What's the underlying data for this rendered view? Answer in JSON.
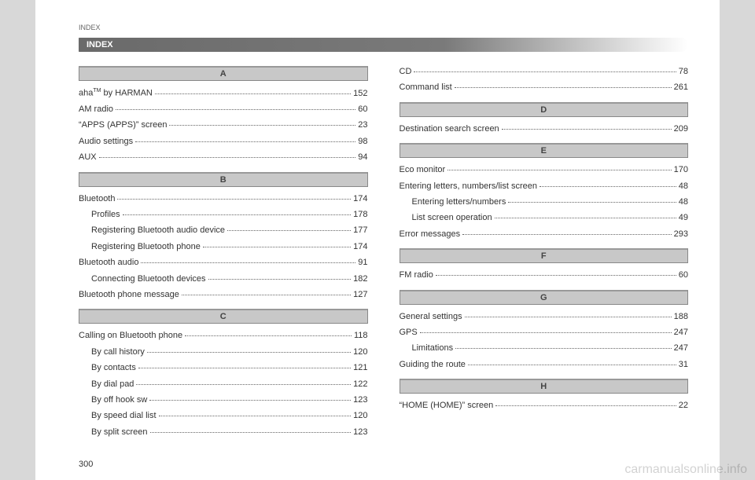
{
  "header": "INDEX",
  "title": "INDEX",
  "pageNumber": "300",
  "watermark": "carmanualsonline.info",
  "left": {
    "sections": [
      {
        "letter": "A",
        "entries": [
          {
            "label": "aha™ by HARMAN",
            "page": "152",
            "indent": false,
            "sup": "TM",
            "prefix": "aha",
            "suffix": " by HARMAN"
          },
          {
            "label": "AM radio",
            "page": "60",
            "indent": false
          },
          {
            "label": "“APPS (APPS)” screen",
            "page": "23",
            "indent": false
          },
          {
            "label": "Audio settings",
            "page": "98",
            "indent": false
          },
          {
            "label": "AUX",
            "page": "94",
            "indent": false
          }
        ]
      },
      {
        "letter": "B",
        "entries": [
          {
            "label": "Bluetooth",
            "page": "174",
            "indent": false
          },
          {
            "label": "Profiles",
            "page": "178",
            "indent": true
          },
          {
            "label": "Registering Bluetooth audio device",
            "page": "177",
            "indent": true
          },
          {
            "label": "Registering Bluetooth phone",
            "page": "174",
            "indent": true
          },
          {
            "label": "Bluetooth audio",
            "page": "91",
            "indent": false
          },
          {
            "label": "Connecting Bluetooth devices",
            "page": "182",
            "indent": true
          },
          {
            "label": "Bluetooth phone message",
            "page": "127",
            "indent": false
          }
        ]
      },
      {
        "letter": "C",
        "entries": [
          {
            "label": "Calling on Bluetooth phone",
            "page": "118",
            "indent": false
          },
          {
            "label": "By call history",
            "page": "120",
            "indent": true
          },
          {
            "label": "By contacts",
            "page": "121",
            "indent": true
          },
          {
            "label": "By dial pad",
            "page": "122",
            "indent": true
          },
          {
            "label": "By off hook sw",
            "page": "123",
            "indent": true
          },
          {
            "label": "By speed dial list",
            "page": "120",
            "indent": true
          },
          {
            "label": "By split screen",
            "page": "123",
            "indent": true
          }
        ]
      }
    ]
  },
  "right": {
    "preEntries": [
      {
        "label": "CD",
        "page": "78",
        "indent": false
      },
      {
        "label": "Command list",
        "page": "261",
        "indent": false
      }
    ],
    "sections": [
      {
        "letter": "D",
        "entries": [
          {
            "label": "Destination search screen",
            "page": "209",
            "indent": false
          }
        ]
      },
      {
        "letter": "E",
        "entries": [
          {
            "label": "Eco monitor",
            "page": "170",
            "indent": false
          },
          {
            "label": "Entering letters, numbers/list screen",
            "page": "48",
            "indent": false
          },
          {
            "label": "Entering letters/numbers",
            "page": "48",
            "indent": true
          },
          {
            "label": "List screen operation",
            "page": "49",
            "indent": true
          },
          {
            "label": "Error messages",
            "page": "293",
            "indent": false
          }
        ]
      },
      {
        "letter": "F",
        "entries": [
          {
            "label": "FM radio",
            "page": "60",
            "indent": false
          }
        ]
      },
      {
        "letter": "G",
        "entries": [
          {
            "label": "General settings",
            "page": "188",
            "indent": false
          },
          {
            "label": "GPS",
            "page": "247",
            "indent": false
          },
          {
            "label": "Limitations",
            "page": "247",
            "indent": true
          },
          {
            "label": "Guiding the route",
            "page": "31",
            "indent": false
          }
        ]
      },
      {
        "letter": "H",
        "entries": [
          {
            "label": "“HOME (HOME)” screen",
            "page": "22",
            "indent": false
          }
        ]
      }
    ]
  }
}
